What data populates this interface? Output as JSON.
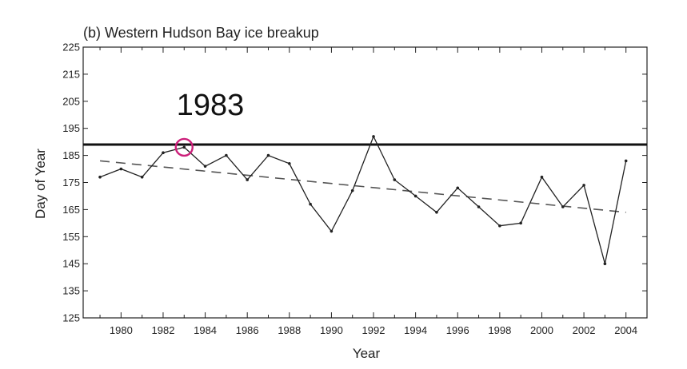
{
  "chart_data": {
    "type": "line",
    "title": "(b) Western Hudson Bay ice breakup",
    "xlabel": "Year",
    "ylabel": "Day of Year",
    "xlim": [
      1978.2,
      2005.0
    ],
    "ylim": [
      125,
      225
    ],
    "x_ticks": [
      1980,
      1982,
      1984,
      1986,
      1988,
      1990,
      1992,
      1994,
      1996,
      1998,
      2000,
      2002,
      2004
    ],
    "y_ticks": [
      125,
      135,
      145,
      155,
      165,
      175,
      185,
      195,
      205,
      215,
      225
    ],
    "grid": false,
    "series": [
      {
        "style": "solid-with-markers",
        "color": "#222222",
        "x": [
          1979,
          1980,
          1981,
          1982,
          1983,
          1984,
          1985,
          1986,
          1987,
          1988,
          1989,
          1990,
          1991,
          1992,
          1993,
          1994,
          1995,
          1996,
          1997,
          1998,
          1999,
          2000,
          2001,
          2002,
          2003,
          2004
        ],
        "y": [
          177,
          180,
          177,
          186,
          188,
          181,
          185,
          176,
          185,
          182,
          167,
          157,
          172,
          192,
          176,
          170,
          164,
          173,
          166,
          159,
          160,
          177,
          166,
          174,
          145,
          183
        ]
      },
      {
        "style": "dashed-trend",
        "color": "#555555",
        "x": [
          1979,
          2004
        ],
        "y": [
          183,
          164
        ]
      }
    ],
    "reference_line": {
      "y": 189,
      "color": "#111111"
    },
    "annotation": {
      "text": "1983",
      "x": 1983,
      "y": 188,
      "circle_color": "#cc1f7a"
    }
  }
}
